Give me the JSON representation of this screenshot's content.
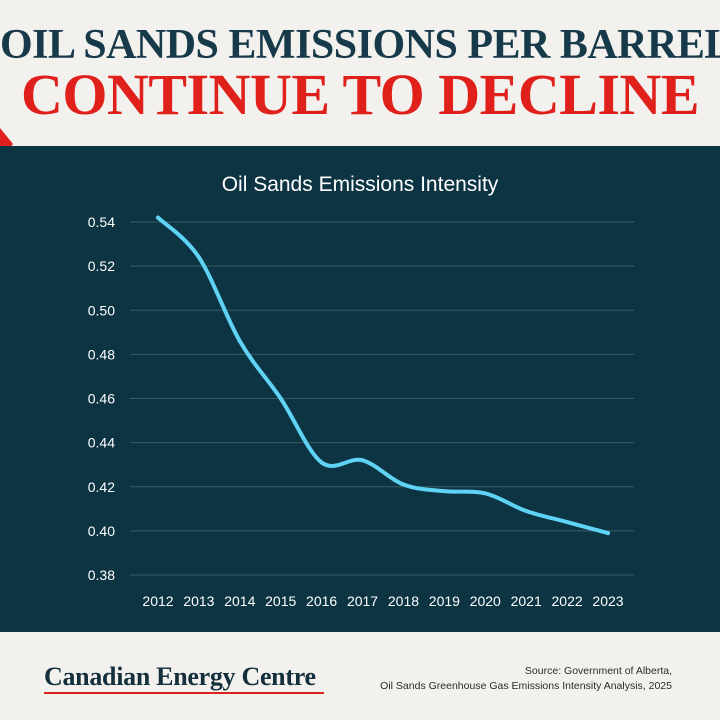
{
  "headline": {
    "line1": "OIL SANDS EMISSIONS PER BARREL",
    "line2": "CONTINUE TO DECLINE"
  },
  "colors": {
    "headline_line1": "#173a4a",
    "headline_line2": "#e0201b",
    "panel": "#0d3443",
    "series_line": "#5fd3f5",
    "accent_red": "#e0201b"
  },
  "chart_data": {
    "type": "line",
    "title": "Oil Sands Emissions Intensity",
    "xlabel": "",
    "ylabel": "",
    "categories": [
      "2012",
      "2013",
      "2014",
      "2015",
      "2016",
      "2017",
      "2018",
      "2019",
      "2020",
      "2021",
      "2022",
      "2023"
    ],
    "series": [
      {
        "values": [
          0.542,
          0.524,
          0.486,
          0.46,
          0.431,
          0.432,
          0.421,
          0.418,
          0.417,
          0.409,
          0.404,
          0.399
        ]
      }
    ],
    "yticks": [
      "0.54",
      "0.52",
      "0.50",
      "0.48",
      "0.46",
      "0.44",
      "0.42",
      "0.40",
      "0.38"
    ],
    "ylim": [
      0.38,
      0.54
    ],
    "grid": true,
    "legend": "none"
  },
  "footer": {
    "logo_text": "Canadian Energy Centre",
    "source_line1": "Source: Government of Alberta,",
    "source_line2": "Oil Sands Greenhouse Gas Emissions Intensity Analysis, 2025"
  }
}
